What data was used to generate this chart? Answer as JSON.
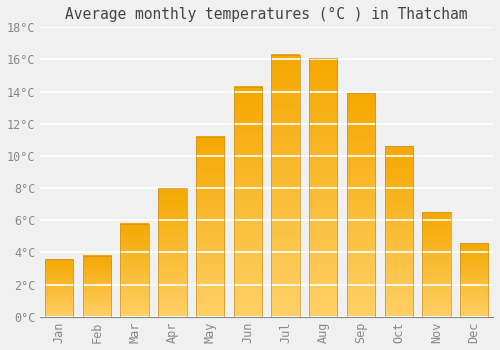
{
  "title": "Average monthly temperatures (°C ) in Thatcham",
  "months": [
    "Jan",
    "Feb",
    "Mar",
    "Apr",
    "May",
    "Jun",
    "Jul",
    "Aug",
    "Sep",
    "Oct",
    "Nov",
    "Dec"
  ],
  "values": [
    3.6,
    3.8,
    5.8,
    8.0,
    11.2,
    14.3,
    16.3,
    16.1,
    13.9,
    10.6,
    6.5,
    4.6
  ],
  "bar_color_light": "#FFD066",
  "bar_color_dark": "#F5A800",
  "bar_edge_color": "#C8922A",
  "ylim": [
    0,
    18
  ],
  "ytick_step": 2,
  "background_color": "#F0F0F0",
  "grid_color": "#FFFFFF",
  "bar_width": 0.75,
  "title_fontsize": 10.5,
  "tick_fontsize": 8.5,
  "font_family": "monospace"
}
